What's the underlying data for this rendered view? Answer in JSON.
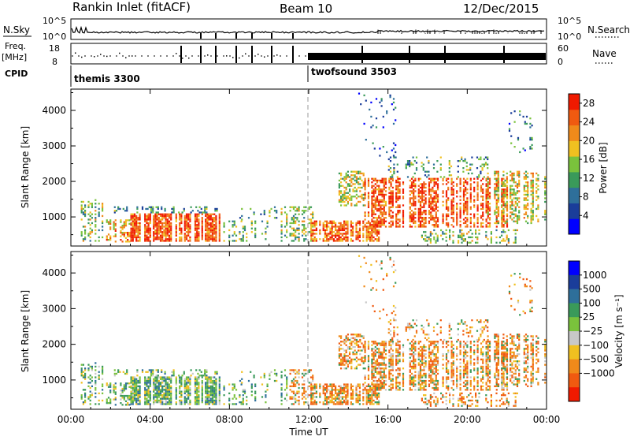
{
  "header": {
    "station": "Rankin Inlet (fitACF)",
    "beam": "Beam 10",
    "date": "12/Dec/2015"
  },
  "status": {
    "nsky_label": "N.Sky",
    "nsky_ticks": [
      "10^5",
      "10^0"
    ],
    "nsearch_label": "N.Search",
    "nsearch_ticks": [
      "10^5",
      "10^0"
    ],
    "freq_label": "Freq.",
    "freq_unit": "[MHz]",
    "freq_ticks": [
      "18",
      "8"
    ],
    "nave_label": "Nave",
    "nave_ticks": [
      "60",
      "0"
    ],
    "cpid_label": "CPID",
    "cpid_modes": [
      {
        "name": "themis 3300",
        "start_hour": 0
      },
      {
        "name": "twofsound 3503",
        "start_hour": 12
      }
    ]
  },
  "colors": {
    "power": [
      "#0000ff",
      "#1a3d9a",
      "#2e6f9a",
      "#3a9a5a",
      "#7ac23c",
      "#f0c020",
      "#f08a1a",
      "#f05a10",
      "#f01a00"
    ],
    "velocity": [
      "#0000ff",
      "#1a3d9a",
      "#2e6f9a",
      "#3a9a5a",
      "#7ac23c",
      "#c8c8c8",
      "#f0c020",
      "#f08a1a",
      "#f05a10",
      "#f01a00"
    ]
  },
  "chart_data": [
    {
      "type": "heatmap",
      "name": "power",
      "ylabel": "Slant Range [km]",
      "ylim": [
        180,
        4600
      ],
      "yticks": [
        "1000",
        "2000",
        "3000",
        "4000"
      ],
      "xlim": [
        0,
        24
      ],
      "colorbar_label": "Power [dB]",
      "colorbar_ticks": [
        "4",
        "8",
        "12",
        "16",
        "20",
        "24",
        "28"
      ],
      "colorbar_range": [
        0,
        30
      ]
    },
    {
      "type": "heatmap",
      "name": "velocity",
      "ylabel": "Slant Range [km]",
      "ylim": [
        180,
        4600
      ],
      "yticks": [
        "1000",
        "2000",
        "3000",
        "4000"
      ],
      "xlim": [
        0,
        24
      ],
      "xlabel": "Time UT",
      "xticks": [
        "00:00",
        "04:00",
        "08:00",
        "12:00",
        "16:00",
        "20:00",
        "00:00"
      ],
      "colorbar_label": "Velocity [m s⁻¹]",
      "colorbar_ticks": [
        "1000",
        "500",
        "100",
        "25",
        "−25",
        "−100",
        "−500",
        "−1000"
      ]
    }
  ]
}
